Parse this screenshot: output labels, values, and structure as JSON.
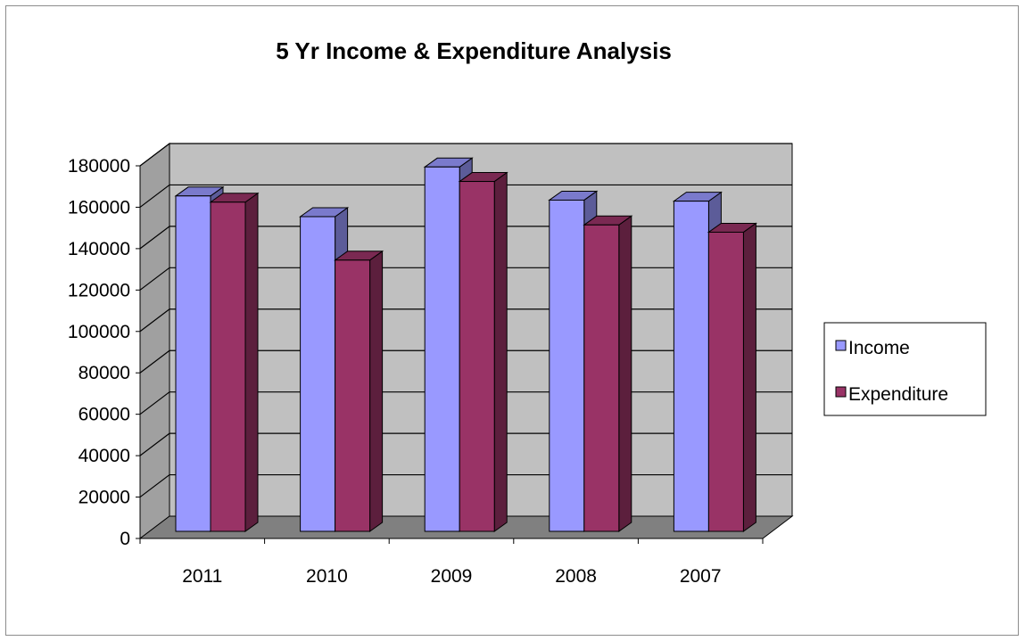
{
  "chart_data": {
    "type": "bar",
    "title": "5 Yr Income & Expenditure Analysis",
    "categories": [
      "2011",
      "2010",
      "2009",
      "2008",
      "2007"
    ],
    "series": [
      {
        "name": "Income",
        "values": [
          162000,
          152000,
          176000,
          160000,
          159500
        ]
      },
      {
        "name": "Expenditure",
        "values": [
          159000,
          131000,
          169000,
          148000,
          144500
        ]
      }
    ],
    "yticks": [
      "0",
      "20000",
      "40000",
      "60000",
      "80000",
      "100000",
      "120000",
      "140000",
      "160000",
      "180000"
    ],
    "ylim": [
      0,
      180000
    ],
    "grid": true,
    "legend_position": "right",
    "style": "3d-clustered-column"
  },
  "colors": {
    "Income": {
      "front": "#9999ff",
      "top": "#7a7acc",
      "side": "#5c5c99"
    },
    "Expenditure": {
      "front": "#993366",
      "top": "#7a2952",
      "side": "#5c1f3d"
    },
    "back_wall": "#c0c0c0",
    "side_wall": "#a0a0a0",
    "floor": "#808080",
    "gridline": "#000000"
  }
}
